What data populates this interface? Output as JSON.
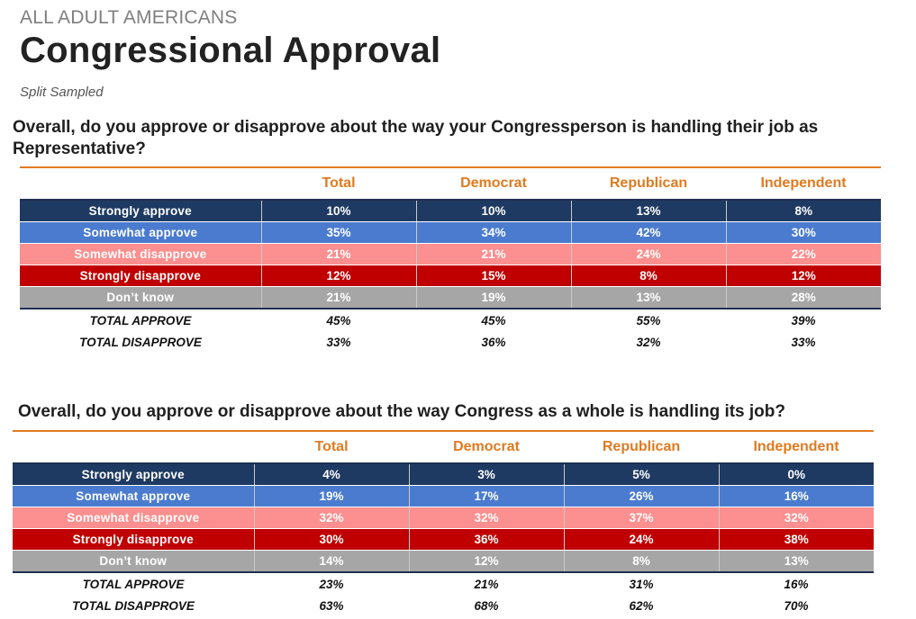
{
  "header": {
    "kicker": "ALL ADULT AMERICANS",
    "title": "Congressional Approval",
    "subtitle": "Split Sampled"
  },
  "colors": {
    "accent_orange": "#e07a20",
    "strongly_approve": "#1e3a62",
    "somewhat_approve": "#4a7bcf",
    "somewhat_disapprove": "#fc8f8f",
    "strongly_disapprove": "#c00000",
    "dont_know": "#a6a6a6"
  },
  "tables": [
    {
      "question": "Overall, do you approve or disapprove about the way your Congressperson is handling their job as Representative?",
      "columns": [
        "Total",
        "Democrat",
        "Republican",
        "Independent"
      ],
      "rows": [
        {
          "label": "Strongly approve",
          "values": [
            "10%",
            "10%",
            "13%",
            "8%"
          ]
        },
        {
          "label": "Somewhat approve",
          "values": [
            "35%",
            "34%",
            "42%",
            "30%"
          ]
        },
        {
          "label": "Somewhat disapprove",
          "values": [
            "21%",
            "21%",
            "24%",
            "22%"
          ]
        },
        {
          "label": "Strongly disapprove",
          "values": [
            "12%",
            "15%",
            "8%",
            "12%"
          ]
        },
        {
          "label": "Don’t know",
          "values": [
            "21%",
            "19%",
            "13%",
            "28%"
          ]
        }
      ],
      "totals": [
        {
          "label": "TOTAL APPROVE",
          "values": [
            "45%",
            "45%",
            "55%",
            "39%"
          ]
        },
        {
          "label": "TOTAL DISAPPROVE",
          "values": [
            "33%",
            "36%",
            "32%",
            "33%"
          ]
        }
      ]
    },
    {
      "question": "Overall, do you approve or disapprove about the way Congress as a whole is handling its job?",
      "columns": [
        "Total",
        "Democrat",
        "Republican",
        "Independent"
      ],
      "rows": [
        {
          "label": "Strongly approve",
          "values": [
            "4%",
            "3%",
            "5%",
            "0%"
          ]
        },
        {
          "label": "Somewhat approve",
          "values": [
            "19%",
            "17%",
            "26%",
            "16%"
          ]
        },
        {
          "label": "Somewhat disapprove",
          "values": [
            "32%",
            "32%",
            "37%",
            "32%"
          ]
        },
        {
          "label": "Strongly disapprove",
          "values": [
            "30%",
            "36%",
            "24%",
            "38%"
          ]
        },
        {
          "label": "Don’t know",
          "values": [
            "14%",
            "12%",
            "8%",
            "13%"
          ]
        }
      ],
      "totals": [
        {
          "label": "TOTAL APPROVE",
          "values": [
            "23%",
            "21%",
            "31%",
            "16%"
          ]
        },
        {
          "label": "TOTAL DISAPPROVE",
          "values": [
            "63%",
            "68%",
            "62%",
            "70%"
          ]
        }
      ]
    }
  ]
}
